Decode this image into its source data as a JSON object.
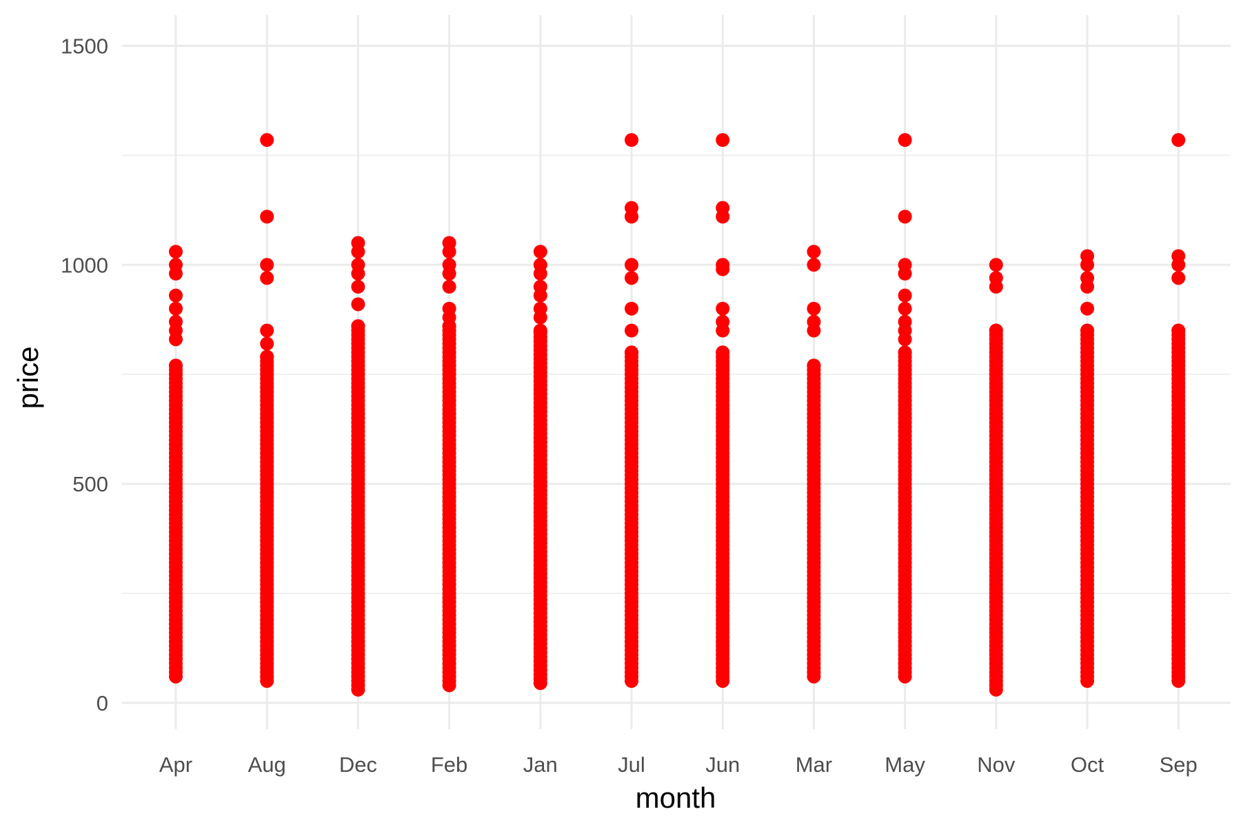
{
  "chart_data": {
    "type": "scatter",
    "title": "",
    "xlabel": "month",
    "ylabel": "price",
    "x_scale": "categorical",
    "ylim": [
      -60,
      1570
    ],
    "yticks": [
      0,
      500,
      1000,
      1500
    ],
    "y_minor_ticks": [
      250,
      750,
      1250
    ],
    "grid": true,
    "legend": "none",
    "point_color": "#ff0000",
    "categories": [
      "Apr",
      "Aug",
      "Dec",
      "Feb",
      "Jan",
      "Jul",
      "Jun",
      "Mar",
      "May",
      "Nov",
      "Oct",
      "Sep"
    ],
    "series": [
      {
        "points": {
          "Apr": {
            "range": [
              60,
              770
            ],
            "extra": [
              830,
              850,
              870,
              900,
              930,
              980,
              1000,
              1030
            ]
          },
          "Aug": {
            "range": [
              50,
              790
            ],
            "extra": [
              820,
              850,
              970,
              1000,
              1110,
              1285
            ]
          },
          "Dec": {
            "range": [
              30,
              860
            ],
            "extra": [
              910,
              950,
              980,
              1000,
              1030,
              1050
            ]
          },
          "Feb": {
            "range": [
              40,
              860
            ],
            "extra": [
              880,
              900,
              950,
              980,
              1000,
              1030,
              1050
            ]
          },
          "Jan": {
            "range": [
              45,
              850
            ],
            "extra": [
              880,
              900,
              930,
              950,
              980,
              1000,
              1030
            ]
          },
          "Jul": {
            "range": [
              50,
              800
            ],
            "extra": [
              850,
              900,
              970,
              1000,
              1110,
              1130,
              1285
            ]
          },
          "Jun": {
            "range": [
              50,
              800
            ],
            "extra": [
              850,
              870,
              900,
              990,
              1000,
              1110,
              1130,
              1285
            ]
          },
          "Mar": {
            "range": [
              60,
              770
            ],
            "extra": [
              850,
              870,
              900,
              1000,
              1030
            ]
          },
          "May": {
            "range": [
              60,
              800
            ],
            "extra": [
              830,
              850,
              870,
              900,
              930,
              980,
              1000,
              1110,
              1285
            ]
          },
          "Nov": {
            "range": [
              30,
              850
            ],
            "extra": [
              950,
              970,
              1000
            ]
          },
          "Oct": {
            "range": [
              50,
              850
            ],
            "extra": [
              900,
              950,
              970,
              1000,
              1020
            ]
          },
          "Sep": {
            "range": [
              50,
              850
            ],
            "extra": [
              970,
              1000,
              1020,
              1285
            ]
          }
        }
      }
    ]
  }
}
